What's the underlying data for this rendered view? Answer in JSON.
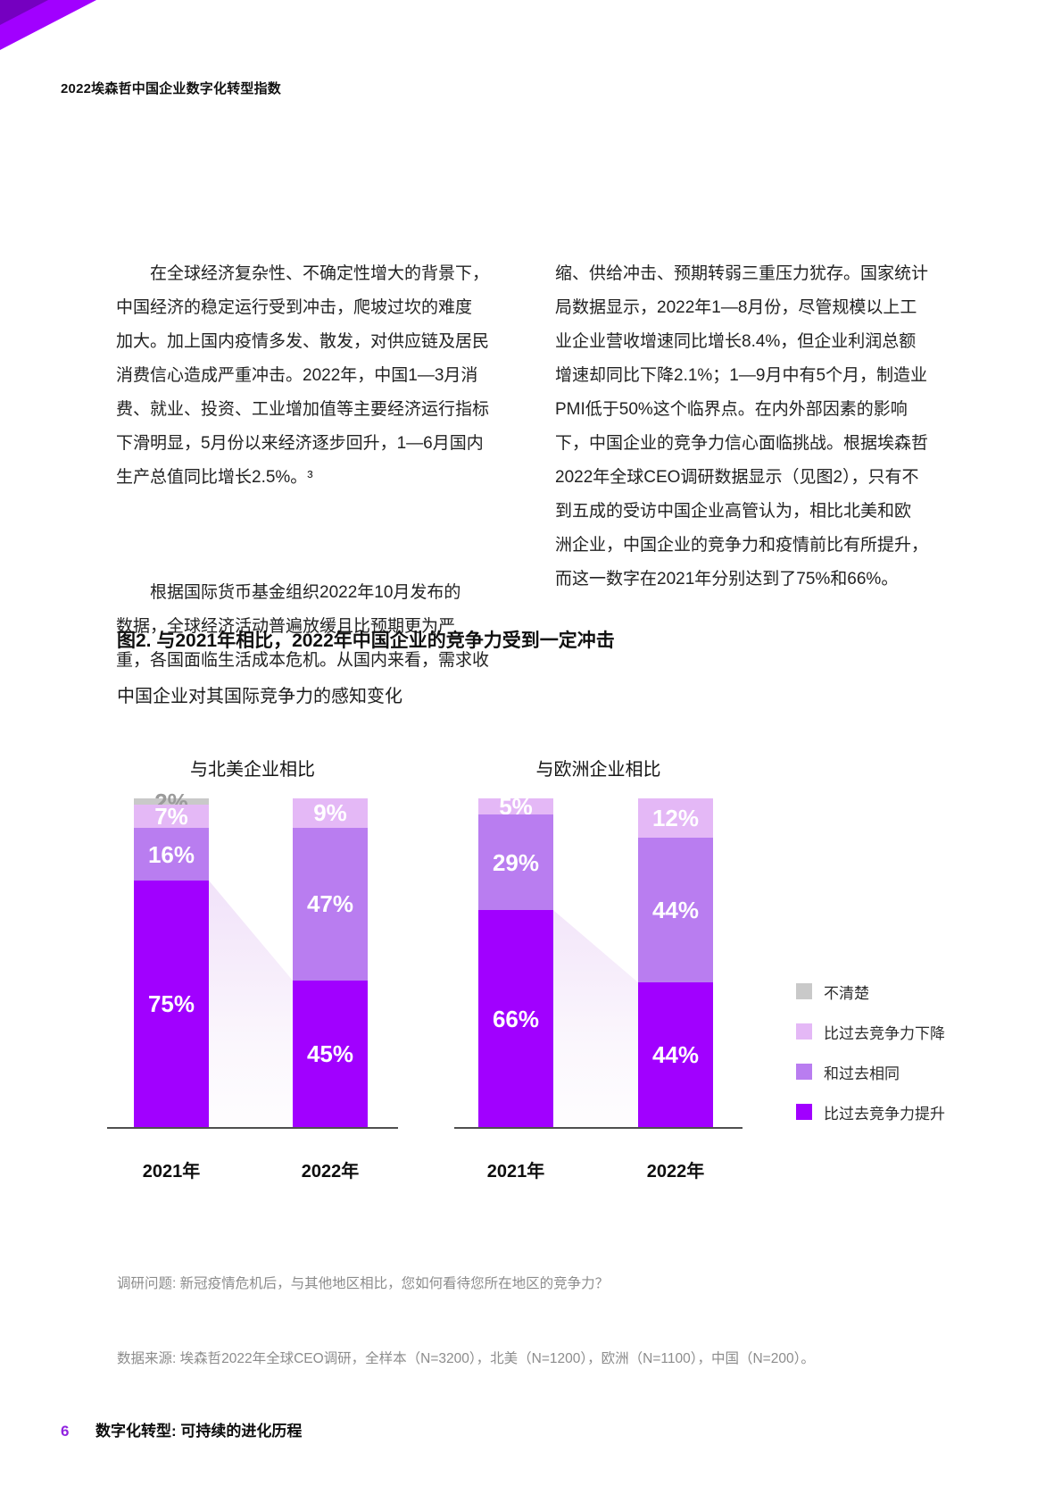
{
  "page": {
    "header": "2022埃森哲中国企业数字化转型指数",
    "footer": {
      "page_number": "6",
      "title": "数字化转型: 可持续的进化历程"
    }
  },
  "brand": {
    "accent_purple": "#a100ff",
    "corner_dark_purple": "#7500c0",
    "page_number_color": "#9023e0"
  },
  "article": {
    "left_column": [
      [
        "　　在全球经济复杂性、不确定性增大的背景下，",
        "中国经济的稳定运行受到冲击，爬坡过坎的难度",
        "加大。加上国内疫情多发、散发，对供应链及居民",
        "消费信心造成严重冲击。2022年，中国1—3月消",
        "费、就业、投资、工业增加值等主要经济运行指标",
        "下滑明显，5月份以来经济逐步回升，1—6月国内",
        "生产总值同比增长2.5%。³"
      ],
      [
        "　　根据国际货币基金组织2022年10月发布的",
        "数据，全球经济活动普遍放缓且比预期更为严",
        "重，各国面临生活成本危机。从国内来看，需求收"
      ]
    ],
    "right_column": [
      [
        "缩、供给冲击、预期转弱三重压力犹存。国家统计",
        "局数据显示，2022年1—8月份，尽管规模以上工",
        "业企业营收增速同比增长8.4%，但企业利润总额",
        "增速却同比下降2.1%；1—9月中有5个月，制造业",
        "PMI低于50%这个临界点。在内外部因素的影响",
        "下，中国企业的竞争力信心面临挑战。根据埃森哲",
        "2022年全球CEO调研数据显示（见图2），只有不",
        "到五成的受访中国企业高管认为，相比北美和欧",
        "洲企业，中国企业的竞争力和疫情前比有所提升，",
        "而这一数字在2021年分别达到了75%和66%。"
      ]
    ]
  },
  "figure": {
    "title": "图2. 与2021年相比，2022年中国企业的竞争力受到一定冲击",
    "subtitle": "中国企业对其国际竞争力的感知变化",
    "notes": [
      "调研问题: 新冠疫情危机后，与其他地区相比，您如何看待您所在地区的竞争力？",
      "数据来源: 埃森哲2022年全球CEO调研，全样本（N=3200），北美（N=1200），欧洲（N=1100），中国（N=200）。"
    ]
  },
  "chart_data": {
    "type": "bar",
    "stacked": true,
    "unit": "%",
    "value_range": [
      0,
      100
    ],
    "grid": false,
    "legend_position": "right",
    "categories": [
      "2021年",
      "2022年"
    ],
    "series": [
      {
        "name": "不清楚",
        "color": "#c9c9c9",
        "label_color": "#9b9b9b"
      },
      {
        "name": "比过去竞争力下降",
        "color": "#e4b8f6",
        "label_color": "#ffffff"
      },
      {
        "name": "和过去相同",
        "color": "#b97df0",
        "label_color": "#ffffff"
      },
      {
        "name": "比过去竞争力提升",
        "color": "#a100ff",
        "label_color": "#ffffff"
      }
    ],
    "groups": [
      {
        "title": "与北美企业相比",
        "bars": [
          {
            "category": "2021年",
            "values": [
              2,
              7,
              16,
              75
            ]
          },
          {
            "category": "2022年",
            "values": [
              null,
              9,
              47,
              45
            ]
          }
        ]
      },
      {
        "title": "与欧洲企业相比",
        "bars": [
          {
            "category": "2021年",
            "values": [
              null,
              5,
              29,
              66
            ]
          },
          {
            "category": "2022年",
            "values": [
              null,
              12,
              44,
              44
            ]
          }
        ]
      }
    ]
  }
}
